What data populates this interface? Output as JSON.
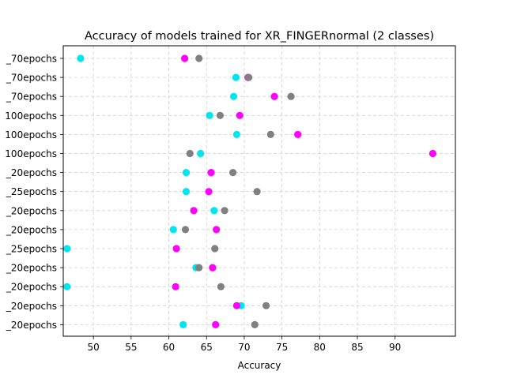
{
  "chart_data": {
    "type": "scatter",
    "title": "Accuracy of models trained for XR_FINGERnormal (2 classes)",
    "xlabel": "Accuracy",
    "ylabel": "",
    "xlim": [
      46.0,
      98.0
    ],
    "xticks": [
      50,
      55,
      60,
      65,
      70,
      75,
      80,
      85,
      90
    ],
    "grid": true,
    "legend": "none",
    "categories": [
      "_70epochs",
      "_70epochs",
      "_70epochs",
      "100epochs",
      "100epochs",
      "100epochs",
      "_20epochs",
      "_25epochs",
      "_20epochs",
      "_20epochs",
      "_25epochs",
      "_20epochs",
      "_20epochs",
      "_20epochs",
      "_20epochs"
    ],
    "series": [
      {
        "color": "#00e5ee",
        "values": [
          48.3,
          68.9,
          68.6,
          65.4,
          69.0,
          64.2,
          62.3,
          62.3,
          66.0,
          60.6,
          46.5,
          63.6,
          46.5,
          69.6,
          61.9
        ]
      },
      {
        "color": "#ff00ff",
        "values": [
          62.1,
          70.5,
          74.0,
          69.4,
          77.1,
          95.0,
          65.6,
          65.3,
          63.3,
          66.3,
          61.0,
          65.8,
          60.9,
          69.0,
          66.2
        ]
      },
      {
        "color": "#808080",
        "values": [
          64.0,
          70.6,
          76.2,
          66.8,
          73.5,
          62.8,
          68.5,
          71.7,
          67.4,
          62.2,
          66.1,
          64.0,
          66.9,
          72.9,
          71.4
        ]
      }
    ]
  }
}
